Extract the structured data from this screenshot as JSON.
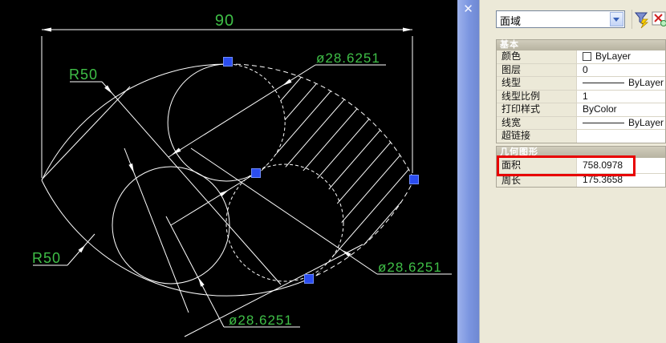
{
  "canvas": {
    "dim_width_label": "90",
    "radius_top_label": "R50",
    "radius_bottom_label": "R50",
    "dia_top_label": "ø28.6251",
    "dia_right_label": "ø28.6251",
    "dia_bottom_label": "ø28.6251",
    "colors": {
      "background": "#000000",
      "lines": "#ffffff",
      "dim_text": "#3fbf47",
      "grip": "#2b4df0"
    }
  },
  "palette": {
    "close_icon_glyph": "✕",
    "type_selector": {
      "value": "面域"
    },
    "sections": [
      {
        "title": "基本",
        "rows": [
          {
            "label": "颜色",
            "value": "ByLayer"
          },
          {
            "label": "图层",
            "value": "0"
          },
          {
            "label": "线型",
            "value": "ByLayer"
          },
          {
            "label": "线型比例",
            "value": "1"
          },
          {
            "label": "打印样式",
            "value": "ByColor"
          },
          {
            "label": "线宽",
            "value": "ByLayer"
          },
          {
            "label": "超链接",
            "value": ""
          }
        ]
      },
      {
        "title": "几何图形",
        "rows": [
          {
            "label": "面积",
            "value": "758.0978"
          },
          {
            "label": "周长",
            "value": "175.3658"
          }
        ]
      }
    ],
    "highlight": {
      "target_row": "面积",
      "color": "#e80000"
    }
  }
}
